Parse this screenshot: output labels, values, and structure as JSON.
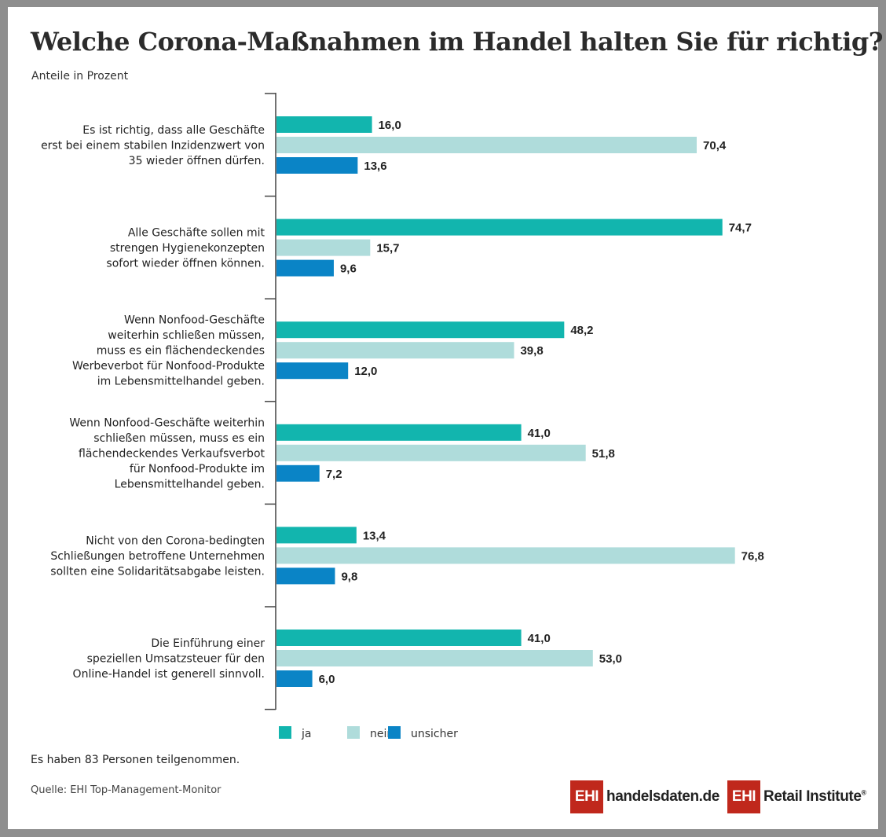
{
  "title": "Welche Corona-Maßnahmen im Handel halten Sie für richtig?",
  "subtitle": "Anteile in Prozent",
  "note": "Es haben 83 Personen teilgenommen.",
  "source": "Quelle: EHI Top-Management-Monitor",
  "logos": {
    "left_box": "EHI",
    "left_text": "handelsdaten.de",
    "right_box": "EHI",
    "right_text": "Retail Institute",
    "right_mark": "®"
  },
  "colors": {
    "ja": "#12b5ae",
    "nein": "#afdcdb",
    "unsicher": "#0a84c6",
    "brand": "#c0281c"
  },
  "chart_data": {
    "type": "bar",
    "orientation": "horizontal",
    "xlim": [
      0,
      80
    ],
    "grid": false,
    "legend_position": "bottom",
    "categories": [
      [
        "Es ist richtig, dass alle Geschäfte",
        "erst bei einem stabilen Inzidenzwert von",
        "35 wieder öffnen dürfen."
      ],
      [
        "Alle Geschäfte sollen mit",
        "strengen Hygienekonzepten",
        "sofort wieder öffnen können."
      ],
      [
        "Wenn Nonfood-Geschäfte",
        "weiterhin schließen müssen,",
        "muss es ein flächendeckendes",
        "Werbeverbot für Nonfood-Produkte",
        "im Lebensmittelhandel geben."
      ],
      [
        "Wenn Nonfood-Geschäfte weiterhin",
        "schließen müssen, muss es ein",
        "flächendeckendes Verkaufsverbot",
        "für Nonfood-Produkte im",
        "Lebensmittelhandel geben."
      ],
      [
        "Nicht von den Corona-bedingten",
        "Schließungen betroffene Unternehmen",
        "sollten eine Solidaritätsabgabe leisten."
      ],
      [
        "Die Einführung einer",
        "speziellen Umsatzsteuer für den",
        "Online-Handel ist generell sinnvoll."
      ]
    ],
    "series": [
      {
        "name": "ja",
        "values": [
          16.0,
          74.7,
          48.2,
          41.0,
          13.4,
          41.0
        ],
        "labels": [
          "16,0",
          "74,7",
          "48,2",
          "41,0",
          "13,4",
          "41,0"
        ]
      },
      {
        "name": "nein",
        "values": [
          70.4,
          15.7,
          39.8,
          51.8,
          76.8,
          53.0
        ],
        "labels": [
          "70,4",
          "15,7",
          "39,8",
          "51,8",
          "76,8",
          "53,0"
        ]
      },
      {
        "name": "unsicher",
        "values": [
          13.6,
          9.6,
          12.0,
          7.2,
          9.8,
          6.0
        ],
        "labels": [
          "13,6",
          "9,6",
          "12,0",
          "7,2",
          "9,8",
          "6,0"
        ]
      }
    ]
  }
}
